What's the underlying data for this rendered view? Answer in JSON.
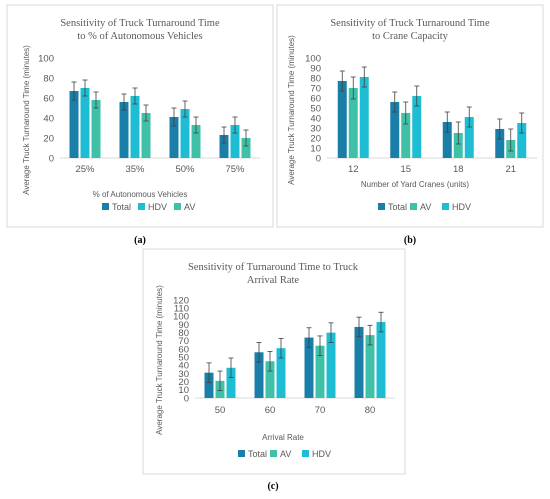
{
  "colors": {
    "Total": "#1a7fa8",
    "HDV": "#1fbdd3",
    "AV": "#3fc1a8"
  },
  "chart_data": [
    {
      "type": "bar",
      "label": "(a)",
      "title_lines": [
        "Sensitivity of Truck Turnaround Time",
        "to % of Autonomous Vehicles"
      ],
      "xlabel": "% of Autonomous Vehicles",
      "ylabel": "Average Truck Turnaround Time (minutes)",
      "ylim": [
        0,
        100
      ],
      "yticks": [
        0,
        20,
        40,
        60,
        80,
        100
      ],
      "categories": [
        "25%",
        "35%",
        "50%",
        "75%"
      ],
      "series": [
        {
          "name": "Total",
          "values": [
            67,
            56,
            41,
            23
          ],
          "errors": [
            9,
            8,
            9,
            8
          ]
        },
        {
          "name": "HDV",
          "values": [
            70,
            62,
            49,
            33
          ],
          "errors": [
            8,
            8,
            8,
            8
          ]
        },
        {
          "name": "AV",
          "values": [
            58,
            45,
            33,
            20
          ],
          "errors": [
            8,
            8,
            8,
            8
          ]
        }
      ],
      "legend_position": "bottom"
    },
    {
      "type": "bar",
      "label": "(b)",
      "title_lines": [
        "Sensitivity of Truck Turnaround Time",
        "to Crane Capacity"
      ],
      "xlabel": "Number of Yard Cranes (units)",
      "ylabel": "Average Truck Turnaround Time (minutes)",
      "ylim": [
        0,
        100
      ],
      "yticks": [
        0,
        10,
        20,
        30,
        40,
        50,
        60,
        70,
        80,
        90,
        100
      ],
      "categories": [
        "12",
        "15",
        "18",
        "21"
      ],
      "series": [
        {
          "name": "Total",
          "values": [
            77,
            56,
            36,
            29
          ],
          "errors": [
            10,
            10,
            10,
            10
          ]
        },
        {
          "name": "AV",
          "values": [
            70,
            45,
            25,
            18
          ],
          "errors": [
            11,
            11,
            11,
            11
          ]
        },
        {
          "name": "HDV",
          "values": [
            81,
            62,
            41,
            35
          ],
          "errors": [
            10,
            10,
            10,
            10
          ]
        }
      ],
      "legend_position": "bottom"
    },
    {
      "type": "bar",
      "label": "(c)",
      "title_lines": [
        "Sensitivity of Turnaround Time to Truck",
        "Arrival Rate"
      ],
      "xlabel": "Arrival Rate",
      "ylabel": "Average Truck Turnaround Time (minutes)",
      "ylim": [
        0,
        120
      ],
      "yticks": [
        0,
        10,
        20,
        30,
        40,
        50,
        60,
        70,
        80,
        90,
        100,
        110,
        120
      ],
      "categories": [
        "50",
        "60",
        "70",
        "80"
      ],
      "series": [
        {
          "name": "Total",
          "values": [
            31,
            56,
            74,
            87
          ],
          "errors": [
            12,
            12,
            12,
            12
          ]
        },
        {
          "name": "AV",
          "values": [
            21,
            45,
            64,
            77
          ],
          "errors": [
            12,
            12,
            12,
            12
          ]
        },
        {
          "name": "HDV",
          "values": [
            37,
            61,
            80,
            93
          ],
          "errors": [
            12,
            12,
            12,
            12
          ]
        }
      ],
      "legend_position": "bottom"
    }
  ]
}
